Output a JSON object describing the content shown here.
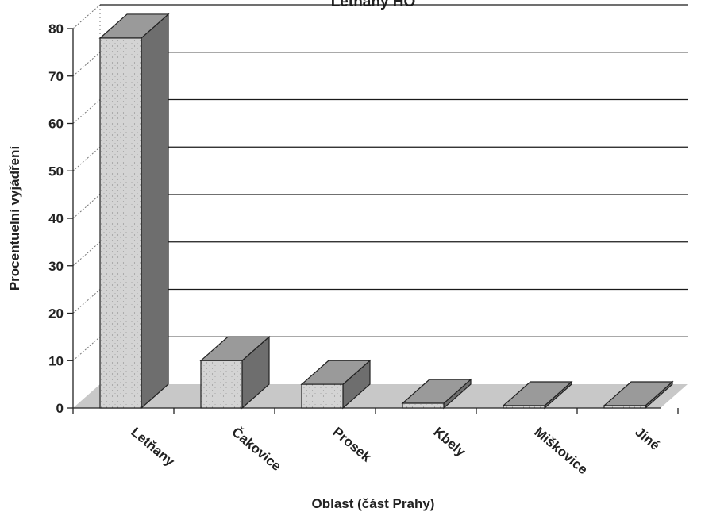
{
  "chart_data": {
    "type": "bar",
    "title": "Letňany HO",
    "xlabel": "Oblast (část Prahy)",
    "ylabel": "Procentuelní vyjádření",
    "categories": [
      "Letňany",
      "Čakovice",
      "Prosek",
      "Kbely",
      "Miškovice",
      "Jiné"
    ],
    "values": [
      78,
      10,
      5,
      1,
      0,
      0
    ],
    "ylim": [
      0,
      80
    ],
    "yticks": [
      "0",
      "10",
      "20",
      "30",
      "40",
      "50",
      "60",
      "70",
      "80"
    ],
    "grid": true,
    "legend": "none",
    "style": "3d"
  },
  "colors": {
    "bar_front": "#d4d4d4",
    "bar_top": "#9a9a9a",
    "bar_side": "#6e6e6e",
    "floor": "#c8c8c8",
    "gridline": "#1a1a1a",
    "outline": "#222222"
  }
}
